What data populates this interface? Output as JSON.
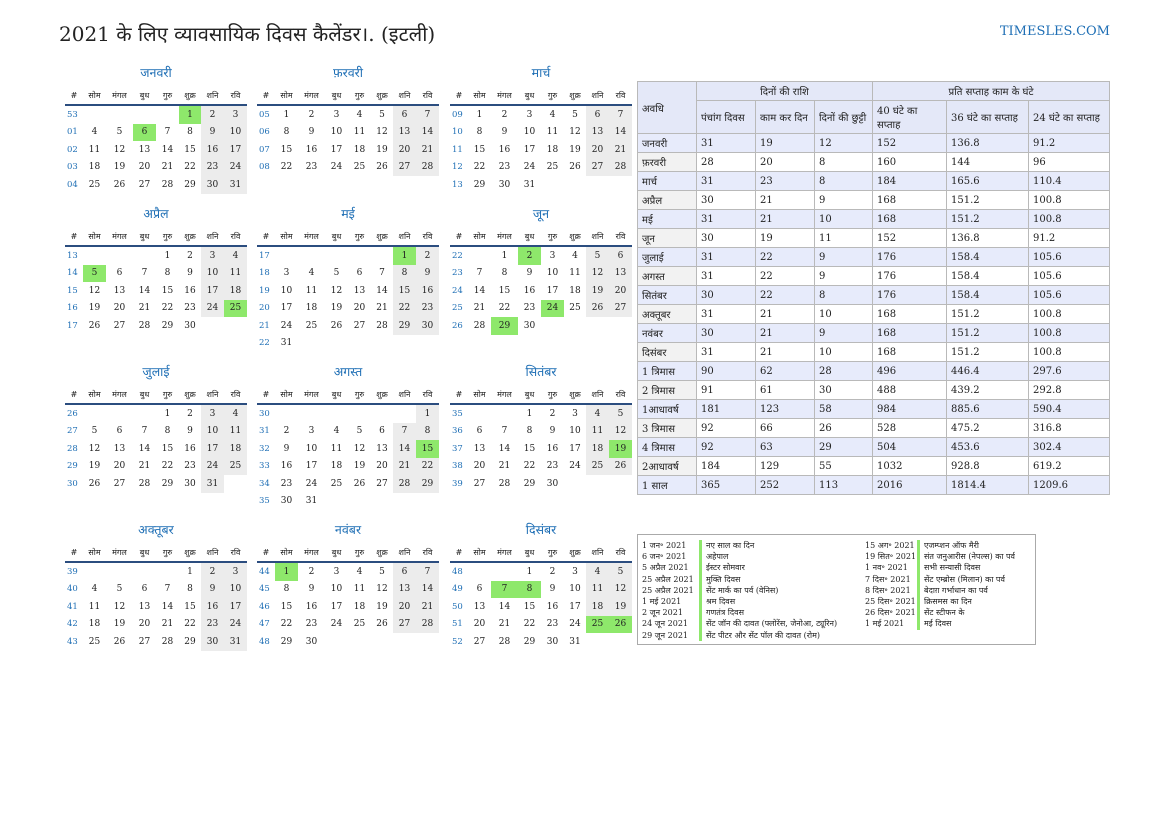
{
  "title": "2021 के लिए व्यावसायिक दिवस कैलेंडर।. (इटली)",
  "site": "TIMESLES.COM",
  "colors": {
    "accent": "#1f6fb5",
    "holiday": "#8ee86b",
    "weekend": "#ececec"
  },
  "calendar": {
    "headers": [
      "#",
      "सोम",
      "मंगल",
      "बुध",
      "गुरु",
      "शुक्र",
      "शनि",
      "रवि"
    ],
    "months": [
      {
        "name": "जनवरी",
        "weeks": [
          [
            "53",
            "",
            "",
            "",
            "",
            "1",
            "2",
            "3"
          ],
          [
            "01",
            "4",
            "5",
            "6",
            "7",
            "8",
            "9",
            "10"
          ],
          [
            "02",
            "11",
            "12",
            "13",
            "14",
            "15",
            "16",
            "17"
          ],
          [
            "03",
            "18",
            "19",
            "20",
            "21",
            "22",
            "23",
            "24"
          ],
          [
            "04",
            "25",
            "26",
            "27",
            "28",
            "29",
            "30",
            "31"
          ]
        ],
        "holidays": [
          1,
          6
        ]
      },
      {
        "name": "फ़रवरी",
        "weeks": [
          [
            "05",
            "1",
            "2",
            "3",
            "4",
            "5",
            "6",
            "7"
          ],
          [
            "06",
            "8",
            "9",
            "10",
            "11",
            "12",
            "13",
            "14"
          ],
          [
            "07",
            "15",
            "16",
            "17",
            "18",
            "19",
            "20",
            "21"
          ],
          [
            "08",
            "22",
            "23",
            "24",
            "25",
            "26",
            "27",
            "28"
          ]
        ],
        "holidays": []
      },
      {
        "name": "मार्च",
        "weeks": [
          [
            "09",
            "1",
            "2",
            "3",
            "4",
            "5",
            "6",
            "7"
          ],
          [
            "10",
            "8",
            "9",
            "10",
            "11",
            "12",
            "13",
            "14"
          ],
          [
            "11",
            "15",
            "16",
            "17",
            "18",
            "19",
            "20",
            "21"
          ],
          [
            "12",
            "22",
            "23",
            "24",
            "25",
            "26",
            "27",
            "28"
          ],
          [
            "13",
            "29",
            "30",
            "31",
            "",
            "",
            "",
            ""
          ]
        ],
        "holidays": []
      },
      {
        "name": "अप्रैल",
        "weeks": [
          [
            "13",
            "",
            "",
            "",
            "1",
            "2",
            "3",
            "4"
          ],
          [
            "14",
            "5",
            "6",
            "7",
            "8",
            "9",
            "10",
            "11"
          ],
          [
            "15",
            "12",
            "13",
            "14",
            "15",
            "16",
            "17",
            "18"
          ],
          [
            "16",
            "19",
            "20",
            "21",
            "22",
            "23",
            "24",
            "25"
          ],
          [
            "17",
            "26",
            "27",
            "28",
            "29",
            "30",
            "",
            ""
          ]
        ],
        "holidays": [
          5,
          25
        ]
      },
      {
        "name": "मई",
        "weeks": [
          [
            "17",
            "",
            "",
            "",
            "",
            "",
            "1",
            "2"
          ],
          [
            "18",
            "3",
            "4",
            "5",
            "6",
            "7",
            "8",
            "9"
          ],
          [
            "19",
            "10",
            "11",
            "12",
            "13",
            "14",
            "15",
            "16"
          ],
          [
            "20",
            "17",
            "18",
            "19",
            "20",
            "21",
            "22",
            "23"
          ],
          [
            "21",
            "24",
            "25",
            "26",
            "27",
            "28",
            "29",
            "30"
          ],
          [
            "22",
            "31",
            "",
            "",
            "",
            "",
            "",
            ""
          ]
        ],
        "holidays": [
          1
        ]
      },
      {
        "name": "जून",
        "weeks": [
          [
            "22",
            "",
            "1",
            "2",
            "3",
            "4",
            "5",
            "6"
          ],
          [
            "23",
            "7",
            "8",
            "9",
            "10",
            "11",
            "12",
            "13"
          ],
          [
            "24",
            "14",
            "15",
            "16",
            "17",
            "18",
            "19",
            "20"
          ],
          [
            "25",
            "21",
            "22",
            "23",
            "24",
            "25",
            "26",
            "27"
          ],
          [
            "26",
            "28",
            "29",
            "30",
            "",
            "",
            "",
            ""
          ]
        ],
        "holidays": [
          2,
          24,
          29
        ]
      },
      {
        "name": "जुलाई",
        "weeks": [
          [
            "26",
            "",
            "",
            "",
            "1",
            "2",
            "3",
            "4"
          ],
          [
            "27",
            "5",
            "6",
            "7",
            "8",
            "9",
            "10",
            "11"
          ],
          [
            "28",
            "12",
            "13",
            "14",
            "15",
            "16",
            "17",
            "18"
          ],
          [
            "29",
            "19",
            "20",
            "21",
            "22",
            "23",
            "24",
            "25"
          ],
          [
            "30",
            "26",
            "27",
            "28",
            "29",
            "30",
            "31",
            ""
          ]
        ],
        "holidays": []
      },
      {
        "name": "अगस्त",
        "weeks": [
          [
            "30",
            "",
            "",
            "",
            "",
            "",
            "",
            "1"
          ],
          [
            "31",
            "2",
            "3",
            "4",
            "5",
            "6",
            "7",
            "8"
          ],
          [
            "32",
            "9",
            "10",
            "11",
            "12",
            "13",
            "14",
            "15"
          ],
          [
            "33",
            "16",
            "17",
            "18",
            "19",
            "20",
            "21",
            "22"
          ],
          [
            "34",
            "23",
            "24",
            "25",
            "26",
            "27",
            "28",
            "29"
          ],
          [
            "35",
            "30",
            "31",
            "",
            "",
            "",
            "",
            ""
          ]
        ],
        "holidays": [
          15
        ]
      },
      {
        "name": "सितंबर",
        "weeks": [
          [
            "35",
            "",
            "",
            "1",
            "2",
            "3",
            "4",
            "5"
          ],
          [
            "36",
            "6",
            "7",
            "8",
            "9",
            "10",
            "11",
            "12"
          ],
          [
            "37",
            "13",
            "14",
            "15",
            "16",
            "17",
            "18",
            "19"
          ],
          [
            "38",
            "20",
            "21",
            "22",
            "23",
            "24",
            "25",
            "26"
          ],
          [
            "39",
            "27",
            "28",
            "29",
            "30",
            "",
            "",
            ""
          ]
        ],
        "holidays": [
          19
        ]
      },
      {
        "name": "अक्तूबर",
        "weeks": [
          [
            "39",
            "",
            "",
            "",
            "",
            "1",
            "2",
            "3"
          ],
          [
            "40",
            "4",
            "5",
            "6",
            "7",
            "8",
            "9",
            "10"
          ],
          [
            "41",
            "11",
            "12",
            "13",
            "14",
            "15",
            "16",
            "17"
          ],
          [
            "42",
            "18",
            "19",
            "20",
            "21",
            "22",
            "23",
            "24"
          ],
          [
            "43",
            "25",
            "26",
            "27",
            "28",
            "29",
            "30",
            "31"
          ]
        ],
        "holidays": []
      },
      {
        "name": "नवंबर",
        "weeks": [
          [
            "44",
            "1",
            "2",
            "3",
            "4",
            "5",
            "6",
            "7"
          ],
          [
            "45",
            "8",
            "9",
            "10",
            "11",
            "12",
            "13",
            "14"
          ],
          [
            "46",
            "15",
            "16",
            "17",
            "18",
            "19",
            "20",
            "21"
          ],
          [
            "47",
            "22",
            "23",
            "24",
            "25",
            "26",
            "27",
            "28"
          ],
          [
            "48",
            "29",
            "30",
            "",
            "",
            "",
            "",
            ""
          ]
        ],
        "holidays": [
          1
        ]
      },
      {
        "name": "दिसंबर",
        "weeks": [
          [
            "48",
            "",
            "",
            "1",
            "2",
            "3",
            "4",
            "5"
          ],
          [
            "49",
            "6",
            "7",
            "8",
            "9",
            "10",
            "11",
            "12"
          ],
          [
            "50",
            "13",
            "14",
            "15",
            "16",
            "17",
            "18",
            "19"
          ],
          [
            "51",
            "20",
            "21",
            "22",
            "23",
            "24",
            "25",
            "26"
          ],
          [
            "52",
            "27",
            "28",
            "29",
            "30",
            "31",
            "",
            ""
          ]
        ],
        "holidays": [
          7,
          8,
          25,
          26
        ]
      }
    ]
  },
  "stats": {
    "col_period": "अवधि",
    "group_days": "दिनों की राशि",
    "group_hours": "प्रति सप्ताह काम के घंटे",
    "sub_headers": [
      "पंचांग दिवस",
      "काम कर दिन",
      "दिनों की छुट्टी",
      "40 घंटे का सप्ताह",
      "36 घंटे का सप्ताह",
      "24 घंटे का सप्ताह"
    ],
    "rows": [
      [
        "जनवरी",
        "31",
        "19",
        "12",
        "152",
        "136.8",
        "91.2"
      ],
      [
        "फ़रवरी",
        "28",
        "20",
        "8",
        "160",
        "144",
        "96"
      ],
      [
        "मार्च",
        "31",
        "23",
        "8",
        "184",
        "165.6",
        "110.4"
      ],
      [
        "अप्रैल",
        "30",
        "21",
        "9",
        "168",
        "151.2",
        "100.8"
      ],
      [
        "मई",
        "31",
        "21",
        "10",
        "168",
        "151.2",
        "100.8"
      ],
      [
        "जून",
        "30",
        "19",
        "11",
        "152",
        "136.8",
        "91.2"
      ],
      [
        "जुलाई",
        "31",
        "22",
        "9",
        "176",
        "158.4",
        "105.6"
      ],
      [
        "अगस्त",
        "31",
        "22",
        "9",
        "176",
        "158.4",
        "105.6"
      ],
      [
        "सितंबर",
        "30",
        "22",
        "8",
        "176",
        "158.4",
        "105.6"
      ],
      [
        "अक्तूबर",
        "31",
        "21",
        "10",
        "168",
        "151.2",
        "100.8"
      ],
      [
        "नवंबर",
        "30",
        "21",
        "9",
        "168",
        "151.2",
        "100.8"
      ],
      [
        "दिसंबर",
        "31",
        "21",
        "10",
        "168",
        "151.2",
        "100.8"
      ],
      [
        "1 त्रिमास",
        "90",
        "62",
        "28",
        "496",
        "446.4",
        "297.6"
      ],
      [
        "2 त्रिमास",
        "91",
        "61",
        "30",
        "488",
        "439.2",
        "292.8"
      ],
      [
        "1आधावर्ष",
        "181",
        "123",
        "58",
        "984",
        "885.6",
        "590.4"
      ],
      [
        "3 त्रिमास",
        "92",
        "66",
        "26",
        "528",
        "475.2",
        "316.8"
      ],
      [
        "4 त्रिमास",
        "92",
        "63",
        "29",
        "504",
        "453.6",
        "302.4"
      ],
      [
        "2आधावर्ष",
        "184",
        "129",
        "55",
        "1032",
        "928.8",
        "619.2"
      ],
      [
        "1 साल",
        "365",
        "252",
        "113",
        "2016",
        "1814.4",
        "1209.6"
      ]
    ]
  },
  "holidays": {
    "left": [
      [
        "1 जन॰ 2021",
        "नए साल का दिन"
      ],
      [
        "6 जन॰ 2021",
        "अहेपाल"
      ],
      [
        "5 अप्रैल 2021",
        "ईस्टर सोमवार"
      ],
      [
        "25 अप्रैल 2021",
        "मुक्ति दिवस"
      ],
      [
        "25 अप्रैल 2021",
        "सेंट मार्क का पर्व (वेनिस)"
      ],
      [
        "1 मई 2021",
        "श्रम दिवस"
      ],
      [
        "2 जून 2021",
        "गणतंत्र दिवस"
      ],
      [
        "24 जून 2021",
        "सेंट जॉन की दावत (फ्लोरेंस, जेनोआ, ट्यूरिन)"
      ],
      [
        "29 जून 2021",
        "सेंट पीटर और सेंट पॉल की दावत (रोम)"
      ]
    ],
    "right": [
      [
        "15 अग॰ 2021",
        "एजम्प्शन ऑफ मैरी"
      ],
      [
        "19 सित॰ 2021",
        "संत जनुआरीस (नेपल्स) का पर्व"
      ],
      [
        "1 नव॰ 2021",
        "सभी सन्यासी दिवस"
      ],
      [
        "7 दिस॰ 2021",
        "सेंट एम्ब्रोस (मिलान) का पर्व"
      ],
      [
        "8 दिस॰ 2021",
        "बेदाग़ गर्भाधान का पर्व"
      ],
      [
        "25 दिस॰ 2021",
        "क्रिसमस का दिन"
      ],
      [
        "26 दिस॰ 2021",
        "सेंट स्टीफन के"
      ],
      [
        "1 मई 2021",
        "मई दिवस"
      ]
    ]
  }
}
